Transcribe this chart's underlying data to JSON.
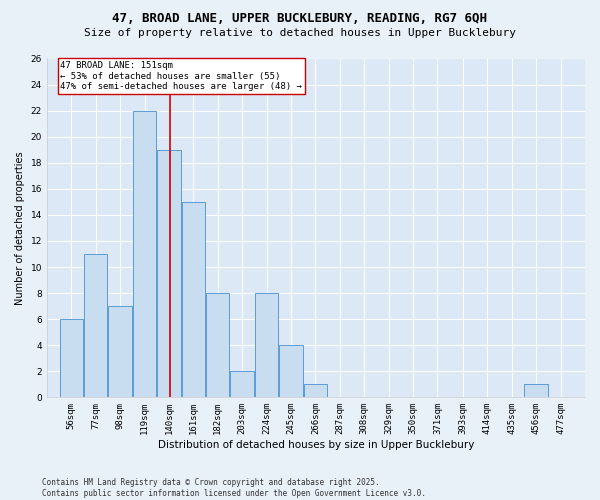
{
  "title1": "47, BROAD LANE, UPPER BUCKLEBURY, READING, RG7 6QH",
  "title2": "Size of property relative to detached houses in Upper Bucklebury",
  "xlabel": "Distribution of detached houses by size in Upper Bucklebury",
  "ylabel": "Number of detached properties",
  "footer": "Contains HM Land Registry data © Crown copyright and database right 2025.\nContains public sector information licensed under the Open Government Licence v3.0.",
  "bins": [
    "56sqm",
    "77sqm",
    "98sqm",
    "119sqm",
    "140sqm",
    "161sqm",
    "182sqm",
    "203sqm",
    "224sqm",
    "245sqm",
    "266sqm",
    "287sqm",
    "308sqm",
    "329sqm",
    "350sqm",
    "371sqm",
    "393sqm",
    "414sqm",
    "435sqm",
    "456sqm",
    "477sqm"
  ],
  "bin_edges": [
    56,
    77,
    98,
    119,
    140,
    161,
    182,
    203,
    224,
    245,
    266,
    287,
    308,
    329,
    350,
    371,
    393,
    414,
    435,
    456,
    477
  ],
  "counts": [
    6,
    11,
    7,
    22,
    19,
    15,
    8,
    2,
    8,
    4,
    1,
    0,
    0,
    0,
    0,
    0,
    0,
    0,
    0,
    1,
    0
  ],
  "bar_color": "#c9ddf0",
  "bar_edge_color": "#5b9bd5",
  "property_size": 151,
  "vline_color": "#cc0000",
  "annotation_text": "47 BROAD LANE: 151sqm\n← 53% of detached houses are smaller (55)\n47% of semi-detached houses are larger (48) →",
  "annotation_box_color": "#ffffff",
  "annotation_box_edge": "#cc0000",
  "ylim": [
    0,
    26
  ],
  "yticks": [
    0,
    2,
    4,
    6,
    8,
    10,
    12,
    14,
    16,
    18,
    20,
    22,
    24,
    26
  ],
  "bg_color": "#e8f0f8",
  "plot_bg_color": "#dce8f5",
  "title1_fontsize": 9,
  "title2_fontsize": 8,
  "xlabel_fontsize": 7.5,
  "ylabel_fontsize": 7,
  "tick_fontsize": 6.5,
  "annotation_fontsize": 6.5,
  "footer_fontsize": 5.5
}
